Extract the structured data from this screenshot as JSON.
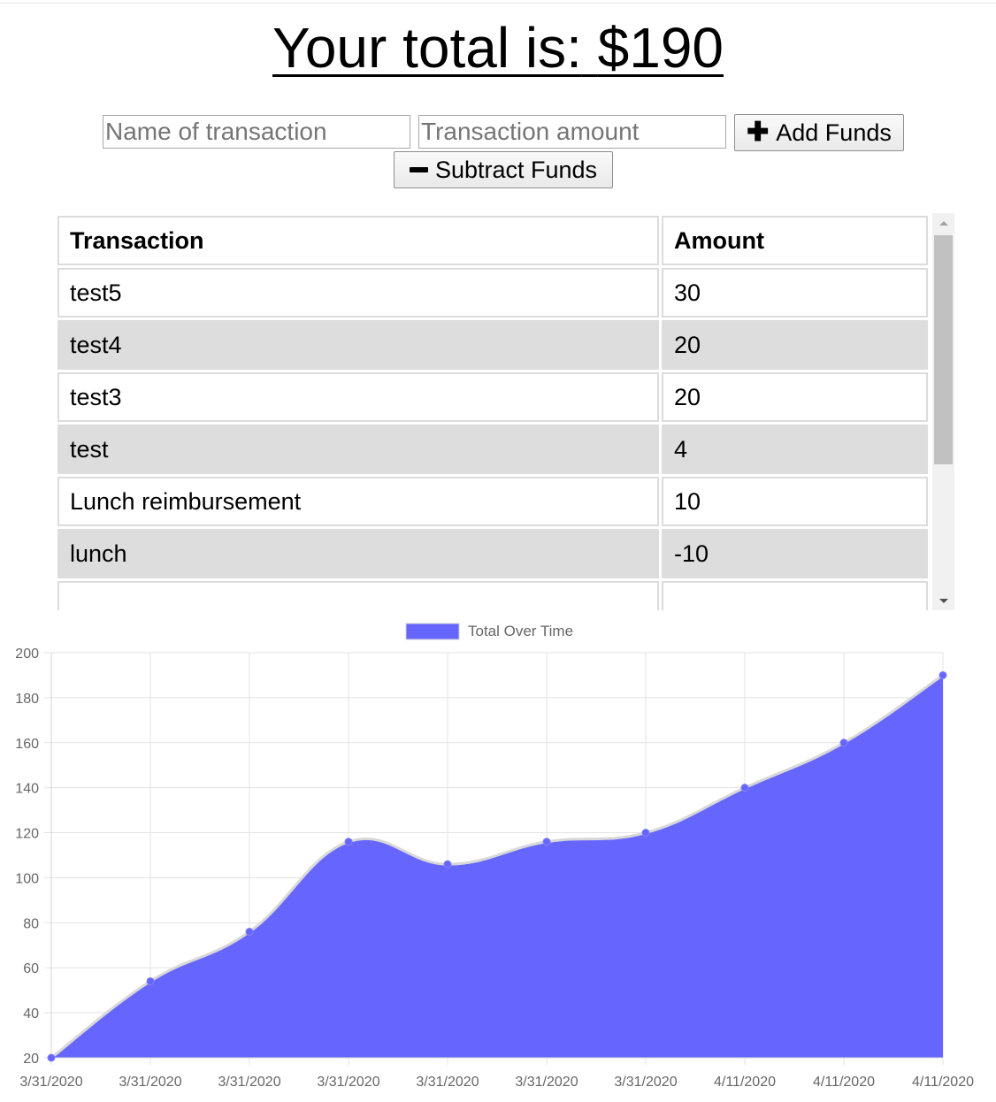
{
  "header": {
    "total_text": "Your total is:",
    "total_value": "$190"
  },
  "form": {
    "name_placeholder": "Name of transaction",
    "amount_placeholder": "Transaction amount",
    "add_label": "Add Funds",
    "subtract_label": "Subtract Funds"
  },
  "table": {
    "headers": [
      "Transaction",
      "Amount"
    ],
    "rows": [
      {
        "name": "test5",
        "amount": "30"
      },
      {
        "name": "test4",
        "amount": "20"
      },
      {
        "name": "test3",
        "amount": "20"
      },
      {
        "name": "test",
        "amount": "4"
      },
      {
        "name": "Lunch reimbursement",
        "amount": "10"
      },
      {
        "name": "lunch",
        "amount": "-10"
      }
    ]
  },
  "chart_data": {
    "type": "area",
    "legend": "Total Over Time",
    "legend_position": "top-center",
    "x": [
      "3/31/2020",
      "3/31/2020",
      "3/31/2020",
      "3/31/2020",
      "3/31/2020",
      "3/31/2020",
      "3/31/2020",
      "4/11/2020",
      "4/11/2020",
      "4/11/2020"
    ],
    "series": [
      {
        "name": "Total Over Time",
        "values": [
          20,
          54,
          76,
          116,
          106,
          116,
          120,
          140,
          160,
          190
        ]
      }
    ],
    "ylim": [
      20,
      200
    ],
    "yticks": [
      20,
      40,
      60,
      80,
      100,
      120,
      140,
      160,
      180,
      200
    ],
    "grid": true,
    "fill_color": "#6666ff",
    "line_color": "#d8d8d8",
    "point_color": "#6666ff"
  }
}
